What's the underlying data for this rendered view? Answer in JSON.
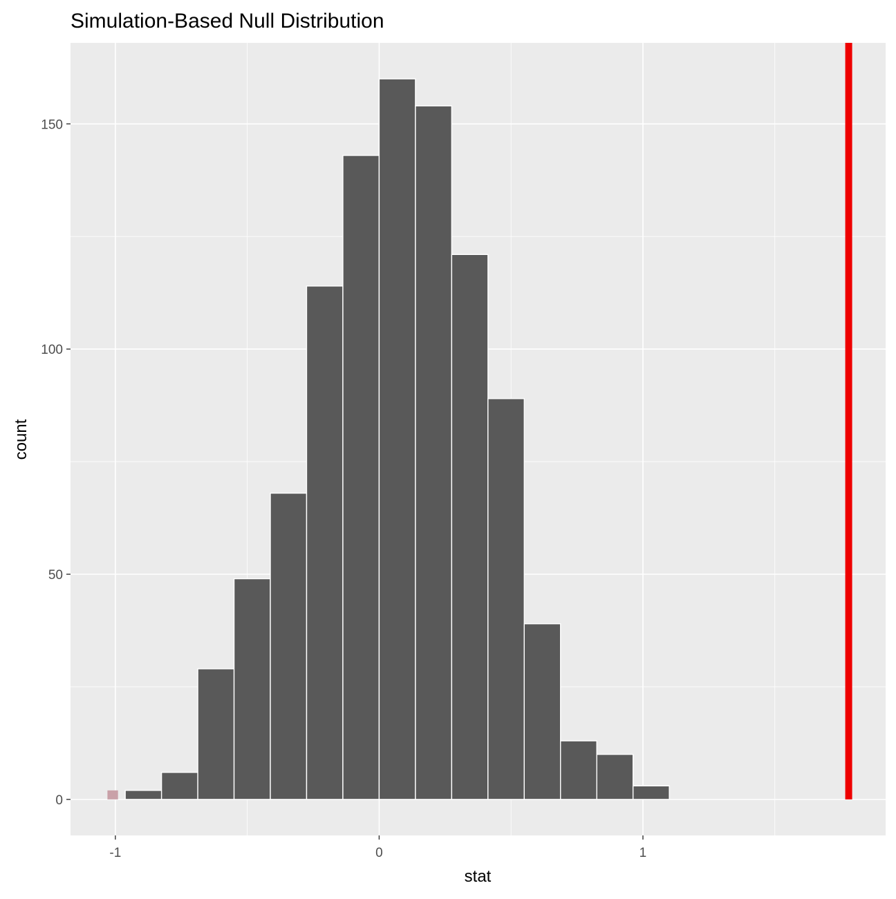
{
  "chart_data": {
    "type": "bar",
    "title": "Simulation-Based Null Distribution",
    "xlabel": "stat",
    "ylabel": "count",
    "xlim": [
      -1.17,
      1.92
    ],
    "ylim": [
      -8,
      168
    ],
    "x_ticks": [
      {
        "value": -1,
        "label": "-1"
      },
      {
        "value": 0,
        "label": "0"
      },
      {
        "value": 1,
        "label": "1"
      }
    ],
    "y_ticks": [
      {
        "value": 0,
        "label": "0"
      },
      {
        "value": 50,
        "label": "50"
      },
      {
        "value": 100,
        "label": "100"
      },
      {
        "value": 150,
        "label": "150"
      }
    ],
    "x_minor": [
      -0.5,
      0.5,
      1.5
    ],
    "y_minor": [
      25,
      75,
      125
    ],
    "bin_width": 0.1375,
    "bins": [
      {
        "x0": -0.9625,
        "x1": -0.825,
        "count": 2
      },
      {
        "x0": -0.825,
        "x1": -0.6875,
        "count": 6
      },
      {
        "x0": -0.6875,
        "x1": -0.55,
        "count": 29
      },
      {
        "x0": -0.55,
        "x1": -0.4125,
        "count": 49
      },
      {
        "x0": -0.4125,
        "x1": -0.275,
        "count": 68
      },
      {
        "x0": -0.275,
        "x1": -0.1375,
        "count": 114
      },
      {
        "x0": -0.1375,
        "x1": 0.0,
        "count": 143
      },
      {
        "x0": 0.0,
        "x1": 0.1375,
        "count": 160
      },
      {
        "x0": 0.1375,
        "x1": 0.275,
        "count": 154
      },
      {
        "x0": 0.275,
        "x1": 0.4125,
        "count": 121
      },
      {
        "x0": 0.4125,
        "x1": 0.55,
        "count": 89
      },
      {
        "x0": 0.55,
        "x1": 0.6875,
        "count": 39
      },
      {
        "x0": 0.6875,
        "x1": 0.825,
        "count": 13
      },
      {
        "x0": 0.825,
        "x1": 0.9625,
        "count": 10
      },
      {
        "x0": 0.9625,
        "x1": 1.1,
        "count": 3
      }
    ],
    "shaded_region": {
      "x0": -1.03,
      "x1": -0.99,
      "count": 2
    },
    "observed_stat": 1.78,
    "colors": {
      "panel": "#ebebeb",
      "grid": "#ffffff",
      "bar_fill": "#595959",
      "bar_outline": "#ffffff",
      "shade": "#c9a1a8",
      "observed_line": "#ee0000"
    },
    "grid": true
  }
}
